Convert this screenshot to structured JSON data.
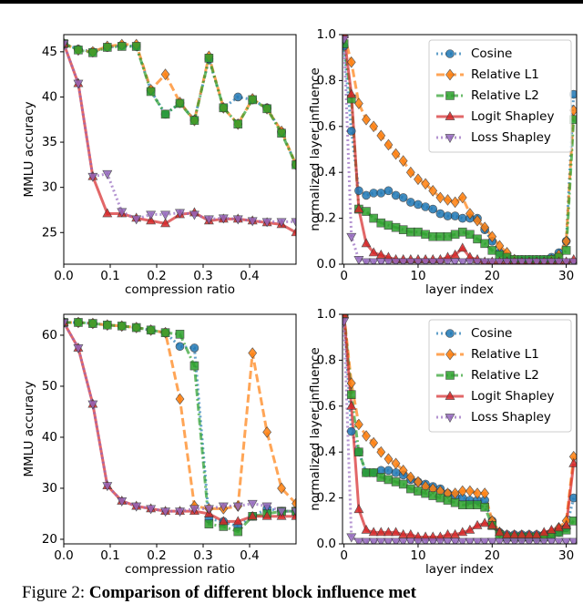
{
  "chart_data": [
    {
      "type": "line",
      "ylabel": "MMLU accuracy",
      "xlabel": "compression ratio",
      "x": [
        0,
        0.03125,
        0.0625,
        0.09375,
        0.125,
        0.15625,
        0.1875,
        0.21875,
        0.25,
        0.28125,
        0.3125,
        0.34375,
        0.375,
        0.40625,
        0.4375,
        0.46875,
        0.5
      ],
      "xlim": [
        0,
        0.5
      ],
      "xticks": [
        {
          "value": 0,
          "label": "0.0"
        },
        0.1,
        0.2,
        0.3,
        0.4
      ],
      "ylim": [
        21.5,
        46.9
      ],
      "yticks": [
        25,
        30,
        35,
        40,
        45
      ],
      "series": [
        {
          "color": "#1f77b4",
          "marker": "circle",
          "dash": "dotted",
          "values": [
            45.9,
            45.3,
            45.0,
            45.5,
            45.7,
            45.6,
            40.7,
            38.1,
            39.3,
            37.5,
            44.2,
            38.8,
            40.0,
            39.7,
            38.8,
            36.1,
            32.5
          ]
        },
        {
          "color": "#ff7f0e",
          "marker": "diamond",
          "dash": "dashed",
          "values": [
            45.9,
            45.2,
            45.0,
            45.6,
            45.8,
            45.8,
            40.8,
            42.5,
            39.4,
            37.4,
            44.5,
            38.8,
            37.0,
            39.8,
            38.7,
            36.2,
            32.5
          ]
        },
        {
          "color": "#2ca02c",
          "marker": "square",
          "dash": "dashdot",
          "values": [
            45.9,
            45.2,
            44.9,
            45.5,
            45.6,
            45.6,
            40.6,
            38.1,
            39.3,
            37.4,
            44.3,
            38.8,
            37.0,
            39.7,
            38.7,
            36.0,
            32.5
          ]
        },
        {
          "color": "#d62728",
          "marker": "triangle-up",
          "dash": "solid",
          "values": [
            45.9,
            41.5,
            31.2,
            27.1,
            27.1,
            26.6,
            26.3,
            26.0,
            27.0,
            27.2,
            26.3,
            26.5,
            26.5,
            26.3,
            26.1,
            25.9,
            25.0
          ]
        },
        {
          "color": "#9467bd",
          "marker": "triangle-down",
          "dash": "dotted",
          "values": [
            45.9,
            41.5,
            31.2,
            31.5,
            27.3,
            26.5,
            27.0,
            27.0,
            27.2,
            27.0,
            26.5,
            26.6,
            26.5,
            26.3,
            26.2,
            26.2,
            26.2
          ]
        }
      ]
    },
    {
      "type": "line",
      "ylabel": "normalized layer influence",
      "xlabel": "layer index",
      "legend": "upper right",
      "x": [
        0,
        1,
        2,
        3,
        4,
        5,
        6,
        7,
        8,
        9,
        10,
        11,
        12,
        13,
        14,
        15,
        16,
        17,
        18,
        19,
        20,
        21,
        22,
        23,
        24,
        25,
        26,
        27,
        28,
        29,
        30,
        31
      ],
      "xlim": [
        -0.2,
        31.4
      ],
      "xticks": [
        0,
        10,
        20,
        30
      ],
      "ylim": [
        0,
        1.0
      ],
      "yticks": [
        {
          "value": 0,
          "label": "0.0"
        },
        0.2,
        0.4,
        0.6,
        0.8,
        {
          "value": 1.0,
          "label": "1.0"
        }
      ],
      "series": [
        {
          "name": "Cosine",
          "color": "#1f77b4",
          "marker": "circle",
          "dash": "dotted",
          "values": [
            0.95,
            0.58,
            0.32,
            0.3,
            0.31,
            0.31,
            0.32,
            0.3,
            0.29,
            0.27,
            0.26,
            0.25,
            0.24,
            0.22,
            0.21,
            0.21,
            0.2,
            0.2,
            0.2,
            0.15,
            0.1,
            0.05,
            0.03,
            0.02,
            0.02,
            0.02,
            0.02,
            0.02,
            0.03,
            0.05,
            0.1,
            0.74
          ]
        },
        {
          "name": "Relative L1",
          "color": "#ff7f0e",
          "marker": "diamond",
          "dash": "dashed",
          "values": [
            1.0,
            0.88,
            0.7,
            0.63,
            0.6,
            0.56,
            0.52,
            0.48,
            0.45,
            0.4,
            0.37,
            0.35,
            0.32,
            0.29,
            0.28,
            0.27,
            0.29,
            0.22,
            0.19,
            0.16,
            0.12,
            0.08,
            0.05,
            0.02,
            0.01,
            0.01,
            0.01,
            0.01,
            0.02,
            0.04,
            0.1,
            0.67
          ]
        },
        {
          "name": "Relative L2",
          "color": "#2ca02c",
          "marker": "square",
          "dash": "dashdot",
          "values": [
            0.96,
            0.72,
            0.24,
            0.23,
            0.2,
            0.18,
            0.17,
            0.16,
            0.15,
            0.14,
            0.14,
            0.13,
            0.12,
            0.12,
            0.12,
            0.13,
            0.14,
            0.13,
            0.11,
            0.09,
            0.06,
            0.04,
            0.03,
            0.02,
            0.02,
            0.02,
            0.02,
            0.02,
            0.02,
            0.03,
            0.06,
            0.63
          ]
        },
        {
          "name": "Logit Shapley",
          "color": "#d62728",
          "marker": "triangle-up",
          "dash": "solid",
          "values": [
            1.0,
            0.74,
            0.24,
            0.09,
            0.05,
            0.04,
            0.03,
            0.02,
            0.02,
            0.02,
            0.02,
            0.02,
            0.02,
            0.02,
            0.03,
            0.04,
            0.07,
            0.03,
            0.02,
            0.01,
            0.01,
            0.01,
            0.01,
            0.01,
            0.01,
            0.01,
            0.01,
            0.01,
            0.01,
            0.01,
            0.01,
            0.02
          ]
        },
        {
          "name": "Loss Shapley",
          "color": "#9467bd",
          "marker": "triangle-down",
          "dash": "dotted",
          "values": [
            0.98,
            0.12,
            0.02,
            0.01,
            0.01,
            0.01,
            0.01,
            0.01,
            0.01,
            0.01,
            0.01,
            0.01,
            0.01,
            0.01,
            0.01,
            0.01,
            0.01,
            0.01,
            0.01,
            0.01,
            0.01,
            0.01,
            0.01,
            0.01,
            0.01,
            0.01,
            0.01,
            0.01,
            0.01,
            0.01,
            0.01,
            0.01
          ]
        }
      ]
    },
    {
      "type": "line",
      "ylabel": "MMLU accuracy",
      "xlabel": "compression ratio",
      "x": [
        0,
        0.03125,
        0.0625,
        0.09375,
        0.125,
        0.15625,
        0.1875,
        0.21875,
        0.25,
        0.28125,
        0.3125,
        0.34375,
        0.375,
        0.40625,
        0.4375,
        0.46875,
        0.5
      ],
      "xlim": [
        0,
        0.5
      ],
      "xticks": [
        {
          "value": 0,
          "label": "0.0"
        },
        0.1,
        0.2,
        0.3,
        0.4
      ],
      "ylim": [
        19.1,
        64.1
      ],
      "yticks": [
        20,
        30,
        40,
        50,
        60
      ],
      "series": [
        {
          "color": "#1f77b4",
          "marker": "circle",
          "dash": "dotted",
          "values": [
            62.5,
            62.5,
            62.3,
            62.0,
            61.8,
            61.5,
            61.0,
            60.5,
            57.8,
            57.5,
            24.0,
            23.5,
            22.5,
            24.5,
            26.0,
            25.5,
            25.5
          ]
        },
        {
          "color": "#ff7f0e",
          "marker": "diamond",
          "dash": "dashed",
          "values": [
            62.5,
            62.5,
            62.3,
            62.0,
            61.8,
            61.5,
            61.0,
            60.5,
            47.5,
            26.5,
            26.0,
            26.0,
            26.5,
            56.5,
            41.0,
            30.0,
            27.0
          ]
        },
        {
          "color": "#2ca02c",
          "marker": "square",
          "dash": "dashdot",
          "values": [
            62.5,
            62.5,
            62.3,
            62.0,
            61.8,
            61.5,
            61.0,
            60.5,
            60.2,
            54.0,
            23.0,
            22.5,
            21.5,
            24.5,
            25.0,
            25.5,
            25.5
          ]
        },
        {
          "color": "#d62728",
          "marker": "triangle-up",
          "dash": "solid",
          "values": [
            62.5,
            57.5,
            46.5,
            30.5,
            27.5,
            26.5,
            26.0,
            25.5,
            25.5,
            25.5,
            25.0,
            23.5,
            23.5,
            24.5,
            24.5,
            24.5,
            24.5
          ]
        },
        {
          "color": "#9467bd",
          "marker": "triangle-down",
          "dash": "dotted",
          "values": [
            62.5,
            57.5,
            46.5,
            30.5,
            27.5,
            26.5,
            26.0,
            25.5,
            25.5,
            26.0,
            26.0,
            26.5,
            26.5,
            27.0,
            26.5,
            25.5,
            25.5
          ]
        }
      ]
    },
    {
      "type": "line",
      "ylabel": "normalized layer influence",
      "xlabel": "layer index",
      "legend": "upper right",
      "x": [
        0,
        1,
        2,
        3,
        4,
        5,
        6,
        7,
        8,
        9,
        10,
        11,
        12,
        13,
        14,
        15,
        16,
        17,
        18,
        19,
        20,
        21,
        22,
        23,
        24,
        25,
        26,
        27,
        28,
        29,
        30,
        31
      ],
      "xlim": [
        -0.2,
        31.4
      ],
      "xticks": [
        0,
        10,
        20,
        30
      ],
      "ylim": [
        0,
        1.0
      ],
      "yticks": [
        {
          "value": 0,
          "label": "0.0"
        },
        0.2,
        0.4,
        0.6,
        0.8,
        {
          "value": 1.0,
          "label": "1.0"
        }
      ],
      "series": [
        {
          "name": "Cosine",
          "color": "#1f77b4",
          "marker": "circle",
          "dash": "dotted",
          "values": [
            1.0,
            0.49,
            0.4,
            0.31,
            0.31,
            0.32,
            0.32,
            0.31,
            0.3,
            0.28,
            0.27,
            0.26,
            0.25,
            0.24,
            0.22,
            0.21,
            0.2,
            0.19,
            0.19,
            0.19,
            0.1,
            0.05,
            0.04,
            0.04,
            0.04,
            0.04,
            0.04,
            0.04,
            0.04,
            0.05,
            0.07,
            0.2
          ]
        },
        {
          "name": "Relative L1",
          "color": "#ff7f0e",
          "marker": "diamond",
          "dash": "dashed",
          "values": [
            1.0,
            0.7,
            0.52,
            0.47,
            0.44,
            0.4,
            0.37,
            0.35,
            0.32,
            0.29,
            0.27,
            0.25,
            0.24,
            0.23,
            0.22,
            0.22,
            0.23,
            0.23,
            0.22,
            0.22,
            0.1,
            0.05,
            0.03,
            0.03,
            0.03,
            0.03,
            0.03,
            0.04,
            0.05,
            0.07,
            0.1,
            0.38
          ]
        },
        {
          "name": "Relative L2",
          "color": "#2ca02c",
          "marker": "square",
          "dash": "dashdot",
          "values": [
            1.0,
            0.65,
            0.4,
            0.31,
            0.31,
            0.29,
            0.28,
            0.27,
            0.26,
            0.24,
            0.23,
            0.22,
            0.21,
            0.2,
            0.19,
            0.18,
            0.17,
            0.17,
            0.17,
            0.16,
            0.08,
            0.04,
            0.03,
            0.03,
            0.03,
            0.03,
            0.03,
            0.03,
            0.04,
            0.05,
            0.06,
            0.1
          ]
        },
        {
          "name": "Logit Shapley",
          "color": "#d62728",
          "marker": "triangle-up",
          "dash": "solid",
          "values": [
            1.0,
            0.6,
            0.15,
            0.06,
            0.05,
            0.05,
            0.05,
            0.05,
            0.04,
            0.04,
            0.03,
            0.03,
            0.03,
            0.03,
            0.04,
            0.04,
            0.05,
            0.06,
            0.08,
            0.09,
            0.08,
            0.05,
            0.04,
            0.04,
            0.04,
            0.04,
            0.04,
            0.05,
            0.06,
            0.07,
            0.08,
            0.35
          ]
        },
        {
          "name": "Loss Shapley",
          "color": "#9467bd",
          "marker": "triangle-down",
          "dash": "dotted",
          "values": [
            0.97,
            0.03,
            0.01,
            0.01,
            0.01,
            0.01,
            0.01,
            0.01,
            0.01,
            0.01,
            0.01,
            0.01,
            0.01,
            0.01,
            0.01,
            0.01,
            0.01,
            0.01,
            0.01,
            0.01,
            0.01,
            0.01,
            0.01,
            0.01,
            0.01,
            0.01,
            0.01,
            0.01,
            0.01,
            0.01,
            0.01,
            0.01
          ]
        }
      ]
    }
  ],
  "caption": {
    "label": "Figure 2:",
    "text": "Comparison of different block influence met"
  }
}
